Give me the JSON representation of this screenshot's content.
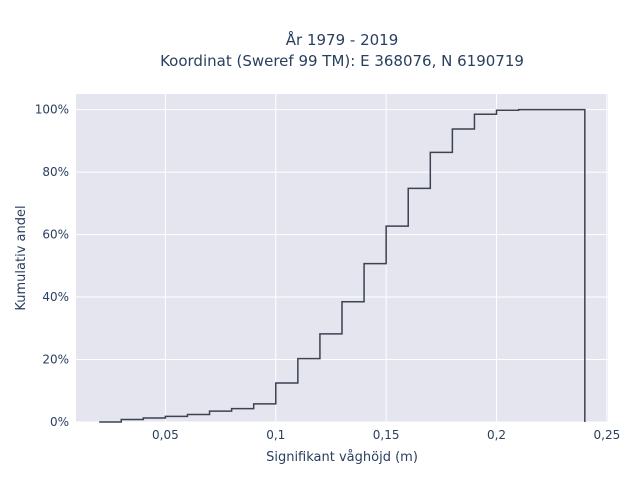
{
  "chart_data": {
    "type": "line",
    "subtype": "step-cdf",
    "title_line1": "År 1979 - 2019",
    "title_line2": "Koordinat (Sweref 99 TM): E 368076, N 6190719",
    "xlabel": "Signifikant våghöjd (m)",
    "ylabel": "Kumulativ andel",
    "xlim": [
      0.0095,
      0.2505
    ],
    "ylim": [
      0,
      1.05
    ],
    "xticks": [
      0.05,
      0.1,
      0.15,
      0.2,
      0.25
    ],
    "xtick_labels": [
      "0,05",
      "0,1",
      "0,15",
      "0,2",
      "0,25"
    ],
    "yticks": [
      0,
      0.2,
      0.4,
      0.6,
      0.8,
      1.0
    ],
    "ytick_labels": [
      "0%",
      "20%",
      "40%",
      "60%",
      "80%",
      "100%"
    ],
    "grid": true,
    "background_color": "#e5e5f0",
    "line_color": "#3b4252",
    "steps": {
      "x": [
        0.02,
        0.03,
        0.04,
        0.05,
        0.06,
        0.07,
        0.08,
        0.09,
        0.1,
        0.11,
        0.12,
        0.13,
        0.14,
        0.15,
        0.16,
        0.17,
        0.18,
        0.19,
        0.2,
        0.21,
        0.22,
        0.23,
        0.24
      ],
      "y": [
        0.0,
        0.008,
        0.013,
        0.018,
        0.024,
        0.035,
        0.043,
        0.058,
        0.125,
        0.203,
        0.282,
        0.385,
        0.507,
        0.627,
        0.748,
        0.863,
        0.938,
        0.985,
        0.998,
        1.0,
        1.0,
        1.0,
        0.0
      ]
    }
  }
}
